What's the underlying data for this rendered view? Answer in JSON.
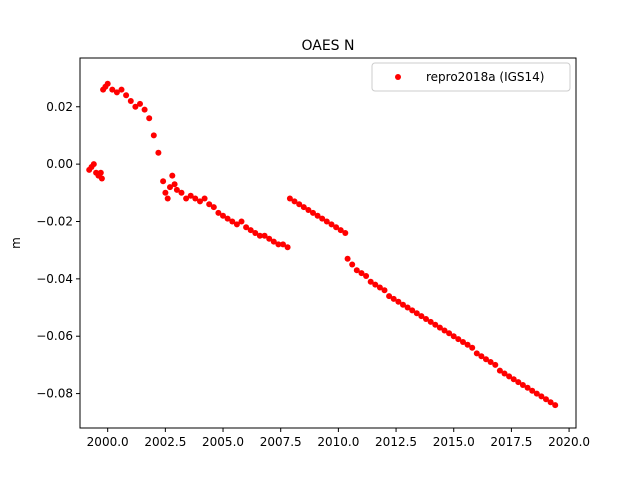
{
  "chart_data": {
    "type": "scatter",
    "title": "OAES N",
    "xlabel": "",
    "ylabel": "m",
    "xlim": [
      1998.8,
      2020.3
    ],
    "ylim": [
      -0.092,
      0.037
    ],
    "x_ticks": [
      2000.0,
      2002.5,
      2005.0,
      2007.5,
      2010.0,
      2012.5,
      2015.0,
      2017.5,
      2020.0
    ],
    "x_tick_labels": [
      "2000.0",
      "2002.5",
      "2005.0",
      "2007.5",
      "2010.0",
      "2012.5",
      "2015.0",
      "2017.5",
      "2020.0"
    ],
    "y_ticks": [
      -0.08,
      -0.06,
      -0.04,
      -0.02,
      0.0,
      0.02
    ],
    "y_tick_labels": [
      "−0.08",
      "−0.06",
      "−0.04",
      "−0.02",
      "0.00",
      "0.02"
    ],
    "grid": false,
    "legend_position": "top-right",
    "series": [
      {
        "name": "repro2018a (IGS14)",
        "color": "#ff0000",
        "marker": "circle",
        "x": [
          1999.2,
          1999.3,
          1999.4,
          1999.5,
          1999.6,
          1999.7,
          1999.75,
          1999.8,
          1999.9,
          2000.0,
          2000.2,
          2000.4,
          2000.6,
          2000.8,
          2001.0,
          2001.2,
          2001.4,
          2001.6,
          2001.8,
          2002.0,
          2002.2,
          2002.4,
          2002.5,
          2002.6,
          2002.7,
          2002.8,
          2002.9,
          2003.0,
          2003.2,
          2003.4,
          2003.6,
          2003.8,
          2004.0,
          2004.2,
          2004.4,
          2004.6,
          2004.8,
          2005.0,
          2005.2,
          2005.4,
          2005.6,
          2005.8,
          2006.0,
          2006.2,
          2006.4,
          2006.6,
          2006.8,
          2007.0,
          2007.2,
          2007.4,
          2007.6,
          2007.8,
          2007.9,
          2008.1,
          2008.3,
          2008.5,
          2008.7,
          2008.9,
          2009.1,
          2009.3,
          2009.5,
          2009.7,
          2009.9,
          2010.1,
          2010.3,
          2010.4,
          2010.6,
          2010.8,
          2011.0,
          2011.2,
          2011.4,
          2011.6,
          2011.8,
          2012.0,
          2012.2,
          2012.4,
          2012.6,
          2012.8,
          2013.0,
          2013.2,
          2013.4,
          2013.6,
          2013.8,
          2014.0,
          2014.2,
          2014.4,
          2014.6,
          2014.8,
          2015.0,
          2015.2,
          2015.4,
          2015.6,
          2015.8,
          2016.0,
          2016.2,
          2016.4,
          2016.6,
          2016.8,
          2017.0,
          2017.2,
          2017.4,
          2017.6,
          2017.8,
          2018.0,
          2018.2,
          2018.4,
          2018.6,
          2018.8,
          2019.0,
          2019.2,
          2019.4
        ],
        "y": [
          -0.002,
          -0.001,
          0.0,
          -0.003,
          -0.004,
          -0.003,
          -0.005,
          0.026,
          0.027,
          0.028,
          0.026,
          0.025,
          0.026,
          0.024,
          0.022,
          0.02,
          0.021,
          0.019,
          0.016,
          0.01,
          0.004,
          -0.006,
          -0.01,
          -0.012,
          -0.008,
          -0.004,
          -0.007,
          -0.009,
          -0.01,
          -0.012,
          -0.011,
          -0.012,
          -0.013,
          -0.012,
          -0.014,
          -0.015,
          -0.017,
          -0.018,
          -0.019,
          -0.02,
          -0.021,
          -0.02,
          -0.022,
          -0.023,
          -0.024,
          -0.025,
          -0.025,
          -0.026,
          -0.027,
          -0.028,
          -0.028,
          -0.029,
          -0.012,
          -0.013,
          -0.014,
          -0.015,
          -0.016,
          -0.017,
          -0.018,
          -0.019,
          -0.02,
          -0.021,
          -0.022,
          -0.023,
          -0.024,
          -0.033,
          -0.035,
          -0.037,
          -0.038,
          -0.039,
          -0.041,
          -0.042,
          -0.043,
          -0.044,
          -0.046,
          -0.047,
          -0.048,
          -0.049,
          -0.05,
          -0.051,
          -0.052,
          -0.053,
          -0.054,
          -0.055,
          -0.056,
          -0.057,
          -0.058,
          -0.059,
          -0.06,
          -0.061,
          -0.062,
          -0.063,
          -0.064,
          -0.066,
          -0.067,
          -0.068,
          -0.069,
          -0.07,
          -0.072,
          -0.073,
          -0.074,
          -0.075,
          -0.076,
          -0.077,
          -0.078,
          -0.079,
          -0.08,
          -0.081,
          -0.082,
          -0.083,
          -0.084
        ]
      }
    ]
  }
}
